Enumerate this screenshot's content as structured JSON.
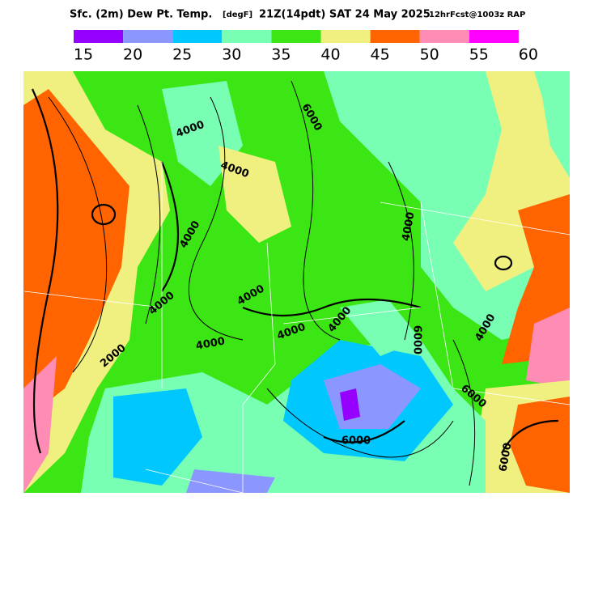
{
  "header": {
    "title": "Sfc. (2m) Dew Pt. Temp.",
    "units": "[degF]",
    "valid": "21Z(14pdt) SAT 24 May 2025",
    "run": "12hrFcst@1003z RAP"
  },
  "legend": {
    "colors": [
      "#9600ff",
      "#8c96ff",
      "#00c8ff",
      "#78ffb4",
      "#3ce614",
      "#f0f080",
      "#ff6400",
      "#ff8cb4",
      "#ff00ff"
    ],
    "labels": [
      15,
      20,
      25,
      30,
      35,
      40,
      45,
      50,
      55,
      60
    ]
  },
  "contour_labels": [
    "4000",
    "4000",
    "4000",
    "6000",
    "4000",
    "4000",
    "2000",
    "4000",
    "4000",
    "4000",
    "4000",
    "6000",
    "6000",
    "4000",
    "6000",
    "6000"
  ]
}
